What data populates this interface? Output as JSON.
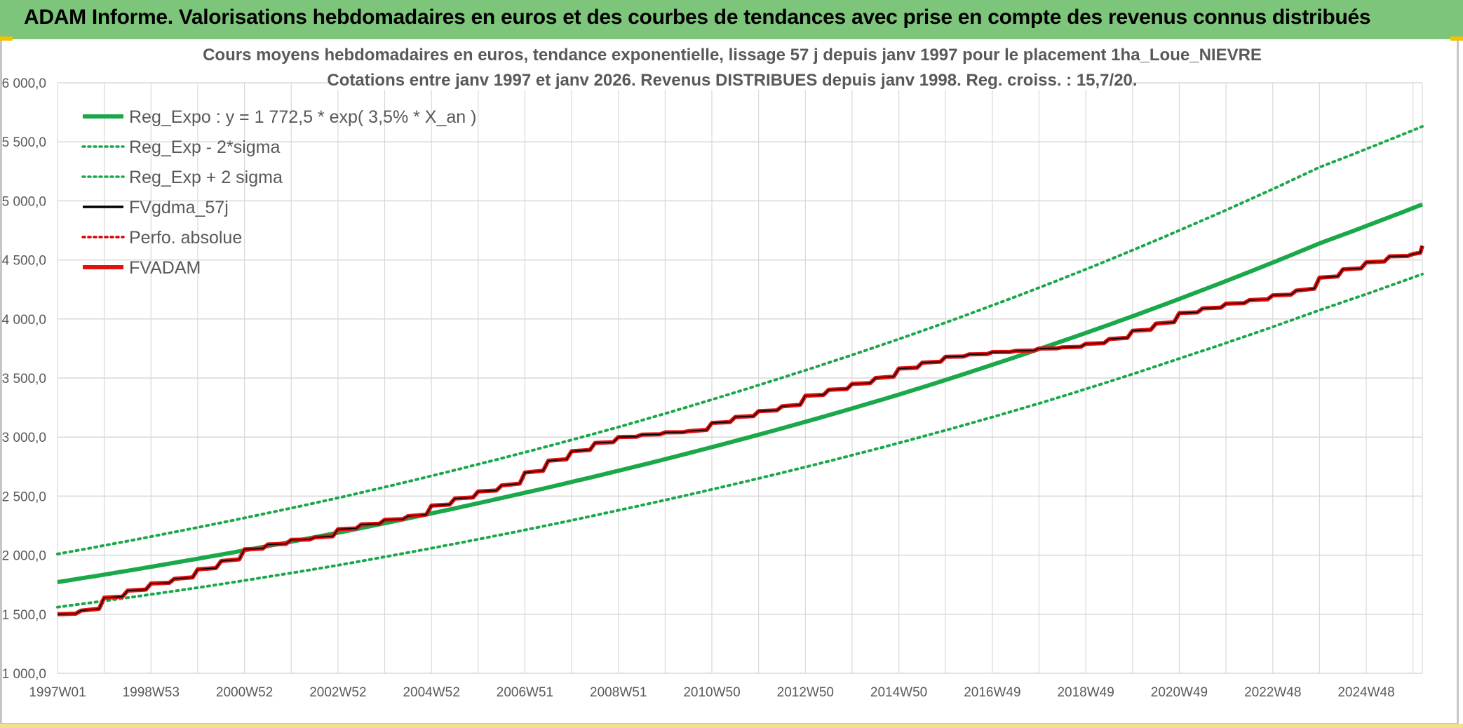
{
  "header": {
    "title": "ADAM Informe. Valorisations hebdomadaires en euros et des courbes de tendances avec prise en compte des revenus connus distribués"
  },
  "colors": {
    "banner": "#7dc57a",
    "trend": "#1aa84a",
    "fv_black": "#000000",
    "perfo": "#d40000",
    "fvadam": "#e31010",
    "grid": "#d9d9d9",
    "text": "#595959"
  },
  "chart_data": {
    "type": "line",
    "title_lines": [
      "Cours moyens hebdomadaires en euros, tendance exponentielle, lissage 57 j depuis janv 1997 pour le placement 1ha_Loue_NIEVRE",
      "Cotations entre janv 1997 et janv 2026. Revenus DISTRIBUES depuis janv 1998. Reg. croiss. : 15,7/20."
    ],
    "y_ticks": [
      "1 000,0",
      "1 500,0",
      "2 000,0",
      "2 500,0",
      "3 000,0",
      "3 500,0",
      "4 000,0",
      "4 500,0",
      "5 000,0",
      "5 500,0",
      "6 000,0"
    ],
    "y_tick_values": [
      1000,
      1500,
      2000,
      2500,
      3000,
      3500,
      4000,
      4500,
      5000,
      5500,
      6000
    ],
    "ylim": [
      1000,
      6000
    ],
    "x_ticks": [
      "1997W01",
      "1998W53",
      "2000W52",
      "2002W52",
      "2004W52",
      "2006W51",
      "2008W51",
      "2010W50",
      "2012W50",
      "2014W50",
      "2016W49",
      "2018W49",
      "2020W49",
      "2022W48",
      "2024W48"
    ],
    "x_tick_years": [
      1997,
      1999,
      2001,
      2003,
      2005,
      2007,
      2009,
      2011,
      2013,
      2015,
      2017,
      2019,
      2021,
      2023,
      2025
    ],
    "xlim_years": [
      1997,
      2026.2
    ],
    "grid": true,
    "legend_position": "top-left",
    "legend": [
      {
        "label": "Reg_Expo : y = 1 772,5 * exp( 3,5% *  X_an )",
        "style": "solid-thick",
        "color": "#1aa84a"
      },
      {
        "label": "Reg_Exp - 2*sigma",
        "style": "dotted",
        "color": "#1aa84a"
      },
      {
        "label": "Reg_Exp + 2 sigma",
        "style": "dotted",
        "color": "#1aa84a"
      },
      {
        "label": "FVgdma_57j",
        "style": "solid",
        "color": "#000000"
      },
      {
        "label": "Perfo. absolue",
        "style": "dotted",
        "color": "#d40000"
      },
      {
        "label": "FVADAM",
        "style": "solid-thick",
        "color": "#e31010"
      }
    ],
    "series": [
      {
        "name": "Reg_Expo : y = 1 772,5 * exp( 3,5% *  X_an )",
        "x": [
          1997,
          2000,
          2003,
          2006,
          2009,
          2012,
          2015,
          2018,
          2021,
          2024,
          2026.2
        ],
        "y": [
          1772,
          1970,
          2190,
          2440,
          2715,
          3020,
          3360,
          3745,
          4170,
          4640,
          4970
        ]
      },
      {
        "name": "Reg_Exp - 2*sigma",
        "x": [
          1997,
          2000,
          2003,
          2006,
          2009,
          2012,
          2015,
          2018,
          2021,
          2024,
          2026.2
        ],
        "y": [
          1560,
          1725,
          1915,
          2135,
          2380,
          2650,
          2950,
          3285,
          3665,
          4075,
          4380
        ]
      },
      {
        "name": "Reg_Exp + 2 sigma",
        "x": [
          1997,
          2000,
          2003,
          2006,
          2009,
          2012,
          2015,
          2018,
          2021,
          2024,
          2026.2
        ],
        "y": [
          2010,
          2235,
          2485,
          2770,
          3085,
          3440,
          3830,
          4265,
          4750,
          5285,
          5630
        ]
      },
      {
        "name": "FVADAM",
        "x": [
          1997,
          1997.5,
          1998,
          1998.5,
          1999,
          1999.5,
          2000,
          2000.5,
          2001,
          2001.5,
          2002,
          2002.5,
          2003,
          2003.5,
          2004,
          2004.5,
          2005,
          2005.5,
          2006,
          2006.5,
          2007,
          2007.5,
          2008,
          2008.5,
          2009,
          2009.5,
          2010,
          2010.5,
          2011,
          2011.5,
          2012,
          2012.5,
          2013,
          2013.5,
          2014,
          2014.5,
          2015,
          2015.5,
          2016,
          2016.5,
          2017,
          2017.5,
          2018,
          2018.5,
          2019,
          2019.5,
          2020,
          2020.5,
          2021,
          2021.5,
          2022,
          2022.5,
          2023,
          2023.5,
          2024,
          2024.5,
          2025,
          2025.5,
          2026,
          2026.2
        ],
        "y": [
          1500,
          1530,
          1640,
          1700,
          1760,
          1800,
          1880,
          1950,
          2050,
          2090,
          2130,
          2150,
          2220,
          2260,
          2300,
          2330,
          2420,
          2480,
          2540,
          2590,
          2700,
          2800,
          2880,
          2950,
          3000,
          3020,
          3040,
          3050,
          3120,
          3170,
          3220,
          3260,
          3350,
          3400,
          3450,
          3500,
          3580,
          3630,
          3680,
          3700,
          3720,
          3730,
          3750,
          3760,
          3790,
          3830,
          3900,
          3960,
          4050,
          4090,
          4130,
          4160,
          4200,
          4240,
          4350,
          4420,
          4480,
          4530,
          4550,
          4620
        ]
      }
    ]
  }
}
